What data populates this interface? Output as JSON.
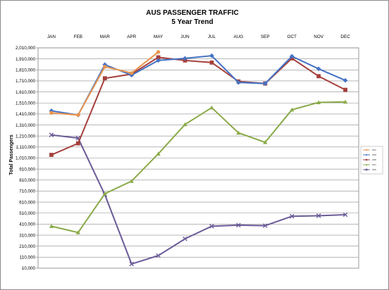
{
  "chart_data": {
    "type": "line",
    "title": "AUS PASSENGER TRAFFIC",
    "subtitle": "5 Year Trend",
    "xlabel": "",
    "ylabel": "Total Passengers",
    "categories": [
      "JAN",
      "FEB",
      "MAR",
      "APR",
      "MAY",
      "JUN",
      "JUL",
      "AUG",
      "SEP",
      "OCT",
      "NOV",
      "DEC"
    ],
    "ylim": [
      10000,
      2110000
    ],
    "yticks": [
      "10,000",
      "110,000",
      "210,000",
      "310,000",
      "410,000",
      "510,000",
      "610,000",
      "710,000",
      "810,000",
      "910,000",
      "1,010,000",
      "1,110,000",
      "1,210,000",
      "1,310,000",
      "1,410,000",
      "1,510,000",
      "1,610,000",
      "1,710,000",
      "1,810,000",
      "1,910,000",
      "2,010,000"
    ],
    "grid": true,
    "legend_position": "right",
    "series": [
      {
        "name": "2010",
        "color": "#e8954f",
        "marker": "circle",
        "values": [
          1490000,
          1470000,
          1930000,
          1870000,
          2070000,
          null,
          null,
          null,
          null,
          null,
          null,
          null
        ]
      },
      {
        "name": "2009",
        "color": "#4472c4",
        "marker": "diamond",
        "values": [
          1510000,
          1470000,
          1950000,
          1850000,
          1990000,
          2010000,
          2035000,
          1780000,
          1770000,
          2030000,
          1910000,
          1800000
        ]
      },
      {
        "name": "2008",
        "color": "#a5403c",
        "marker": "square",
        "values": [
          1090000,
          1200000,
          1820000,
          1860000,
          2020000,
          1990000,
          1970000,
          1790000,
          1770000,
          2010000,
          1840000,
          1710000
        ]
      },
      {
        "name": "2007",
        "color": "#8aaa48",
        "marker": "triangle",
        "values": [
          410000,
          350000,
          720000,
          840000,
          1100000,
          1380000,
          1540000,
          1300000,
          1210000,
          1520000,
          1590000,
          1595000
        ]
      },
      {
        "name": "2006",
        "color": "#6a5a97",
        "marker": "x",
        "values": [
          1280000,
          1250000,
          710000,
          50000,
          130000,
          290000,
          410000,
          420000,
          415000,
          505000,
          510000,
          520000
        ]
      }
    ]
  }
}
